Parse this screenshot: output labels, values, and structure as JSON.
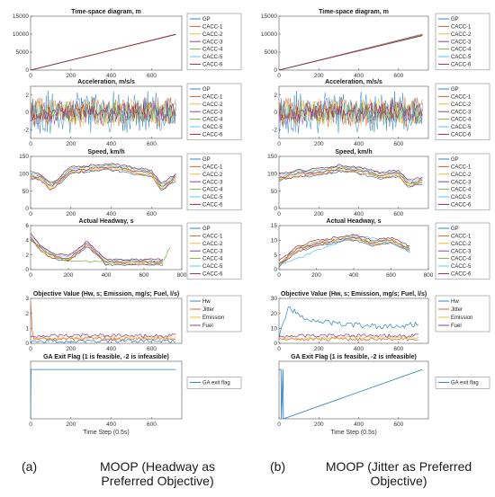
{
  "colors": {
    "GP": "#1f77c4",
    "CACC-1": "#d95319",
    "CACC-2": "#edb120",
    "CACC-3": "#7e2f8e",
    "CACC-4": "#77ac30",
    "CACC-5": "#4dbeee",
    "CACC-6": "#a2142f",
    "Hw": "#1f77c4",
    "Jitter": "#d95319",
    "Emission": "#edb120",
    "Fuel": "#7e2f8e",
    "GA exit flag": "#1f77c4"
  },
  "captions": [
    {
      "tag": "(a)",
      "text": "MOOP (Headway as Preferred Objective)"
    },
    {
      "tag": "(b)",
      "text": "MOOP (Jitter as Preferred Objective)"
    }
  ],
  "chart_data": [
    {
      "panel": "a",
      "row": 0,
      "type": "line",
      "title": "Time-space diagram, m",
      "xlim": [
        0,
        750
      ],
      "ylim": [
        0,
        15000
      ],
      "xticks": [
        0,
        200,
        400,
        600
      ],
      "yticks": [
        0,
        5000,
        10000,
        15000
      ],
      "legend": [
        "GP",
        "CACC-1",
        "CACC-2",
        "CACC-3",
        "CACC-4",
        "CACC-5",
        "CACC-6"
      ],
      "series": [
        {
          "name": "GP",
          "x": [
            0,
            720
          ],
          "y": [
            0,
            10000
          ]
        },
        {
          "name": "CACC-6",
          "x": [
            0,
            720
          ],
          "y": [
            0,
            9900
          ]
        }
      ]
    },
    {
      "panel": "a",
      "row": 1,
      "type": "line",
      "title": "Acceleration, m/s/s",
      "xlim": [
        0,
        750
      ],
      "ylim": [
        -3,
        3
      ],
      "xticks": [
        0,
        200,
        400,
        600
      ],
      "yticks": [
        -2,
        0,
        2
      ],
      "legend": [
        "GP",
        "CACC-1",
        "CACC-2",
        "CACC-3",
        "CACC-4",
        "CACC-5",
        "CACC-6"
      ],
      "series": [
        {
          "name": "GP",
          "x": [
            0,
            720
          ],
          "y": [
            -2.5,
            2.5
          ]
        }
      ]
    },
    {
      "panel": "a",
      "row": 2,
      "type": "line",
      "title": "Speed, km/h",
      "xlim": [
        0,
        750
      ],
      "ylim": [
        0,
        150
      ],
      "xticks": [
        0,
        200,
        400,
        600
      ],
      "yticks": [
        0,
        50,
        100,
        150
      ],
      "legend": [
        "GP",
        "CACC-1",
        "CACC-2",
        "CACC-3",
        "CACC-4",
        "CACC-5",
        "CACC-6"
      ],
      "series": [
        {
          "name": "GP",
          "x": [
            0,
            50,
            100,
            200,
            300,
            400,
            500,
            600,
            650,
            720
          ],
          "y": [
            95,
            90,
            60,
            110,
            115,
            120,
            110,
            100,
            60,
            90
          ]
        }
      ]
    },
    {
      "panel": "a",
      "row": 3,
      "type": "line",
      "title": "Actual Headway, s",
      "xlim": [
        0,
        800
      ],
      "ylim": [
        0,
        6
      ],
      "xticks": [
        0,
        200,
        400,
        600,
        800
      ],
      "yticks": [
        0,
        2,
        4,
        6
      ],
      "legend": [
        "GP",
        "CACC-1",
        "CACC-2",
        "CACC-3",
        "CACC-4",
        "CACC-5",
        "CACC-6"
      ],
      "series": [
        {
          "name": "CACC-1",
          "x": [
            0,
            50,
            100,
            200,
            300,
            400,
            600,
            700
          ],
          "y": [
            4.5,
            3,
            2,
            1.5,
            3.5,
            1,
            1,
            1
          ]
        },
        {
          "name": "CACC-4",
          "x": [
            0,
            100,
            200,
            400,
            700,
            740
          ],
          "y": [
            4,
            2,
            1,
            1,
            1,
            3
          ]
        }
      ]
    },
    {
      "panel": "a",
      "row": 4,
      "type": "line",
      "title": "Objective Value (Hw, s; Emission,  mg/s; Fuel, l/s)",
      "xlim": [
        0,
        750
      ],
      "ylim": [
        0,
        3
      ],
      "xticks": [
        0,
        200,
        400,
        600
      ],
      "yticks": [
        0,
        1,
        2,
        3
      ],
      "legend": [
        "Hw",
        "Jitter",
        "Emission",
        "Fuel"
      ],
      "series": [
        {
          "name": "Jitter",
          "x": [
            0,
            10,
            720
          ],
          "y": [
            2.8,
            0.3,
            0.3
          ]
        }
      ]
    },
    {
      "panel": "a",
      "row": 5,
      "type": "line",
      "title": "GA Exit Flag (1 is feasible, -2 is infeasible)",
      "xlim": [
        0,
        750
      ],
      "ylim": [
        -2,
        1.5
      ],
      "xticks": [
        0,
        200,
        400,
        600
      ],
      "yticks": [],
      "xlabel": "Time Step (0.5s)",
      "legend": [
        "GA exit flag"
      ],
      "series": [
        {
          "name": "GA exit flag",
          "x": [
            0,
            2,
            4,
            720
          ],
          "y": [
            -2,
            1,
            1,
            1
          ]
        }
      ]
    },
    {
      "panel": "b",
      "row": 0,
      "type": "line",
      "title": "Time-space diagram, m",
      "xlim": [
        0,
        750
      ],
      "ylim": [
        0,
        15000
      ],
      "xticks": [
        0,
        200,
        400,
        600
      ],
      "yticks": [
        0,
        5000,
        10000,
        15000
      ],
      "legend": [
        "GP",
        "CACC-1",
        "CACC-2",
        "CACC-3",
        "CACC-4",
        "CACC-5",
        "CACC-6"
      ],
      "series": [
        {
          "name": "GP",
          "x": [
            0,
            720
          ],
          "y": [
            0,
            10000
          ]
        },
        {
          "name": "CACC-6",
          "x": [
            0,
            720
          ],
          "y": [
            0,
            9600
          ]
        }
      ]
    },
    {
      "panel": "b",
      "row": 1,
      "type": "line",
      "title": "Acceleration, m/s/s",
      "xlim": [
        0,
        750
      ],
      "ylim": [
        -3,
        3
      ],
      "xticks": [
        0,
        200,
        400,
        600
      ],
      "yticks": [
        -2,
        0,
        2
      ],
      "legend": [
        "GP",
        "CACC-1",
        "CACC-2",
        "CACC-3",
        "CACC-4",
        "CACC-5",
        "CACC-6"
      ],
      "series": [
        {
          "name": "GP",
          "x": [
            0,
            720
          ],
          "y": [
            -2.5,
            2.5
          ]
        }
      ]
    },
    {
      "panel": "b",
      "row": 2,
      "type": "line",
      "title": "Speed, km/h",
      "xlim": [
        0,
        750
      ],
      "ylim": [
        0,
        150
      ],
      "xticks": [
        0,
        200,
        400,
        600
      ],
      "yticks": [
        0,
        50,
        100,
        150
      ],
      "legend": [
        "GP",
        "CACC-1",
        "CACC-2",
        "CACC-3",
        "CACC-4",
        "CACC-5",
        "CACC-6"
      ],
      "series": [
        {
          "name": "GP",
          "x": [
            0,
            100,
            200,
            300,
            400,
            500,
            600,
            650,
            720
          ],
          "y": [
            90,
            100,
            105,
            115,
            110,
            95,
            100,
            70,
            80
          ]
        }
      ]
    },
    {
      "panel": "b",
      "row": 3,
      "type": "line",
      "title": "Actual Headway, s",
      "xlim": [
        0,
        800
      ],
      "ylim": [
        0,
        15
      ],
      "xticks": [
        0,
        200,
        400,
        600,
        800
      ],
      "yticks": [
        0,
        5,
        10,
        15
      ],
      "legend": [
        "GP",
        "CACC-1",
        "CACC-2",
        "CACC-3",
        "CACC-4",
        "CACC-5",
        "CACC-6"
      ],
      "series": [
        {
          "name": "CACC-4",
          "x": [
            0,
            100,
            200,
            300,
            400,
            500,
            600,
            700
          ],
          "y": [
            2,
            7,
            9,
            10,
            11,
            9,
            10,
            7
          ]
        },
        {
          "name": "CACC-5",
          "x": [
            0,
            100,
            200,
            300,
            400,
            500,
            600,
            700
          ],
          "y": [
            1,
            3,
            6,
            8,
            11,
            10,
            8,
            6
          ]
        }
      ]
    },
    {
      "panel": "b",
      "row": 4,
      "type": "line",
      "title": "Objective Value (Hw, s; Emission,  mg/s; Fuel, l/s)",
      "xlim": [
        0,
        750
      ],
      "ylim": [
        0,
        30
      ],
      "xticks": [
        0,
        200,
        400,
        600
      ],
      "yticks": [
        0,
        10,
        20,
        30
      ],
      "legend": [
        "Hw",
        "Jitter",
        "Emission",
        "Fuel"
      ],
      "series": [
        {
          "name": "Hw",
          "x": [
            0,
            50,
            100,
            200,
            300,
            400,
            500,
            600,
            700
          ],
          "y": [
            5,
            25,
            18,
            15,
            13,
            12,
            11,
            11,
            13
          ]
        }
      ]
    },
    {
      "panel": "b",
      "row": 5,
      "type": "line",
      "title": "GA Exit Flag (1 is feasible, -2 is infeasible)",
      "xlim": [
        0,
        750
      ],
      "ylim": [
        -2,
        1.5
      ],
      "xticks": [
        0,
        200,
        400,
        600
      ],
      "yticks": [],
      "xlabel": "Time Step (0.5s)",
      "legend": [
        "GA exit flag"
      ],
      "series": [
        {
          "name": "GA exit flag",
          "x": [
            0,
            10,
            12,
            20,
            22,
            720
          ],
          "y": [
            1,
            1,
            -2,
            1,
            -2,
            1
          ]
        }
      ]
    }
  ]
}
